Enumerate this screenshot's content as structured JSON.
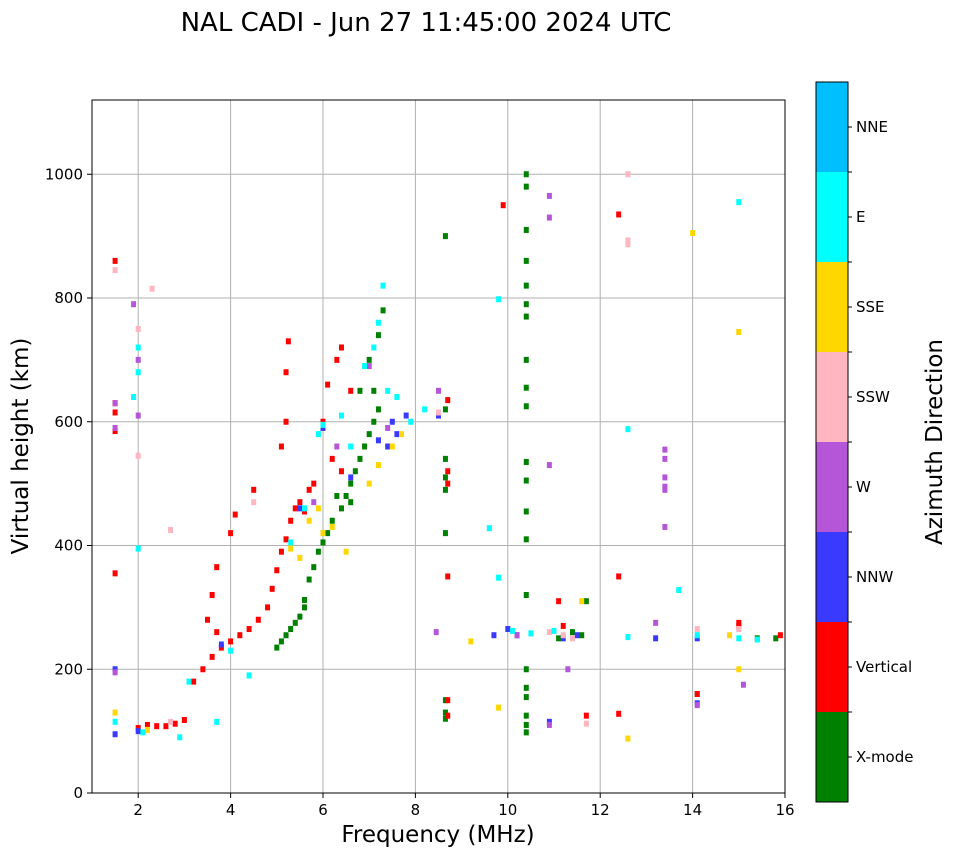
{
  "chart_data": {
    "type": "scatter",
    "title": "NAL CADI - Jun 27 11:45:00 2024 UTC",
    "xlabel": "Frequency (MHz)",
    "ylabel": "Virtual height (km)",
    "xlim": [
      1.0,
      16.0
    ],
    "ylim": [
      0,
      1120
    ],
    "xticks": [
      2,
      4,
      6,
      8,
      10,
      12,
      14,
      16
    ],
    "yticks": [
      0,
      200,
      400,
      600,
      800,
      1000
    ],
    "grid": true,
    "colorbar": {
      "label": "Azimuth Direction",
      "categories": [
        "X-mode",
        "Vertical",
        "NNW",
        "W",
        "SSW",
        "SSE",
        "E",
        "NNE"
      ],
      "colors": [
        "#008000",
        "#ff0000",
        "#3a3aff",
        "#b556d8",
        "#ffb6c1",
        "#ffd700",
        "#00ffff",
        "#00bfff"
      ]
    },
    "series": [
      {
        "name": "X-mode",
        "points": [
          [
            5.0,
            235
          ],
          [
            5.1,
            245
          ],
          [
            5.2,
            255
          ],
          [
            5.3,
            265
          ],
          [
            5.4,
            275
          ],
          [
            5.5,
            285
          ],
          [
            5.6,
            300
          ],
          [
            5.6,
            312
          ],
          [
            5.7,
            345
          ],
          [
            5.8,
            365
          ],
          [
            5.9,
            390
          ],
          [
            6.0,
            405
          ],
          [
            6.1,
            420
          ],
          [
            6.2,
            440
          ],
          [
            6.4,
            460
          ],
          [
            6.5,
            480
          ],
          [
            6.6,
            500
          ],
          [
            6.7,
            520
          ],
          [
            6.8,
            540
          ],
          [
            6.9,
            560
          ],
          [
            7.0,
            580
          ],
          [
            7.1,
            600
          ],
          [
            7.2,
            620
          ],
          [
            6.8,
            650
          ],
          [
            7.0,
            700
          ],
          [
            7.2,
            740
          ],
          [
            7.3,
            780
          ],
          [
            6.3,
            480
          ],
          [
            6.6,
            470
          ],
          [
            7.1,
            650
          ],
          [
            8.65,
            900
          ],
          [
            8.65,
            620
          ],
          [
            8.65,
            540
          ],
          [
            8.65,
            510
          ],
          [
            8.65,
            490
          ],
          [
            8.65,
            420
          ],
          [
            8.65,
            150
          ],
          [
            8.65,
            130
          ],
          [
            8.65,
            120
          ],
          [
            10.4,
            1000
          ],
          [
            10.4,
            980
          ],
          [
            10.4,
            910
          ],
          [
            10.4,
            860
          ],
          [
            10.4,
            820
          ],
          [
            10.4,
            790
          ],
          [
            10.4,
            770
          ],
          [
            10.4,
            700
          ],
          [
            10.4,
            655
          ],
          [
            10.4,
            625
          ],
          [
            10.4,
            535
          ],
          [
            10.4,
            505
          ],
          [
            10.4,
            455
          ],
          [
            10.4,
            410
          ],
          [
            10.4,
            320
          ],
          [
            10.4,
            200
          ],
          [
            10.4,
            170
          ],
          [
            10.4,
            155
          ],
          [
            10.4,
            125
          ],
          [
            10.4,
            110
          ],
          [
            10.4,
            98
          ],
          [
            11.1,
            250
          ],
          [
            11.4,
            260
          ],
          [
            11.6,
            255
          ],
          [
            11.7,
            310
          ],
          [
            14.1,
            160
          ],
          [
            15.4,
            250
          ],
          [
            15.8,
            250
          ]
        ]
      },
      {
        "name": "Vertical",
        "points": [
          [
            1.5,
            860
          ],
          [
            1.5,
            630
          ],
          [
            1.5,
            615
          ],
          [
            1.5,
            585
          ],
          [
            1.5,
            355
          ],
          [
            2.0,
            105
          ],
          [
            2.2,
            110
          ],
          [
            2.4,
            108
          ],
          [
            2.6,
            108
          ],
          [
            2.8,
            112
          ],
          [
            3.0,
            118
          ],
          [
            3.2,
            180
          ],
          [
            3.4,
            200
          ],
          [
            3.6,
            220
          ],
          [
            3.8,
            235
          ],
          [
            4.0,
            245
          ],
          [
            4.2,
            255
          ],
          [
            4.4,
            265
          ],
          [
            4.6,
            280
          ],
          [
            4.8,
            300
          ],
          [
            4.9,
            330
          ],
          [
            5.0,
            360
          ],
          [
            5.1,
            390
          ],
          [
            5.2,
            410
          ],
          [
            5.3,
            440
          ],
          [
            5.4,
            460
          ],
          [
            5.5,
            470
          ],
          [
            5.6,
            455
          ],
          [
            5.7,
            490
          ],
          [
            5.8,
            500
          ],
          [
            5.1,
            560
          ],
          [
            5.2,
            600
          ],
          [
            5.2,
            680
          ],
          [
            5.25,
            730
          ],
          [
            4.5,
            490
          ],
          [
            4.1,
            450
          ],
          [
            4.0,
            420
          ],
          [
            3.7,
            365
          ],
          [
            3.6,
            320
          ],
          [
            3.5,
            280
          ],
          [
            3.7,
            260
          ],
          [
            6.0,
            600
          ],
          [
            6.1,
            660
          ],
          [
            6.3,
            700
          ],
          [
            6.4,
            720
          ],
          [
            6.6,
            650
          ],
          [
            6.2,
            540
          ],
          [
            6.4,
            520
          ],
          [
            8.7,
            520
          ],
          [
            8.7,
            500
          ],
          [
            8.7,
            635
          ],
          [
            8.7,
            350
          ],
          [
            8.7,
            150
          ],
          [
            8.7,
            125
          ],
          [
            9.9,
            950
          ],
          [
            11.1,
            310
          ],
          [
            11.2,
            270
          ],
          [
            11.7,
            125
          ],
          [
            12.4,
            935
          ],
          [
            12.4,
            350
          ],
          [
            12.4,
            128
          ],
          [
            14.1,
            160
          ],
          [
            15.0,
            275
          ],
          [
            15.0,
            270
          ],
          [
            15.9,
            255
          ]
        ]
      },
      {
        "name": "NNW",
        "points": [
          [
            1.5,
            200
          ],
          [
            1.5,
            95
          ],
          [
            2.0,
            100
          ],
          [
            3.8,
            240
          ],
          [
            5.5,
            460
          ],
          [
            6.0,
            590
          ],
          [
            6.6,
            510
          ],
          [
            7.4,
            560
          ],
          [
            7.6,
            580
          ],
          [
            7.8,
            610
          ],
          [
            7.2,
            570
          ],
          [
            7.5,
            600
          ],
          [
            8.5,
            610
          ],
          [
            9.7,
            255
          ],
          [
            10.0,
            265
          ],
          [
            10.2,
            255
          ],
          [
            11.2,
            250
          ],
          [
            11.5,
            255
          ],
          [
            13.2,
            250
          ],
          [
            14.1,
            250
          ],
          [
            14.1,
            145
          ],
          [
            10.9,
            115
          ]
        ]
      },
      {
        "name": "W",
        "points": [
          [
            1.5,
            630
          ],
          [
            1.5,
            590
          ],
          [
            1.5,
            195
          ],
          [
            1.9,
            790
          ],
          [
            2.0,
            700
          ],
          [
            2.0,
            610
          ],
          [
            5.8,
            470
          ],
          [
            6.3,
            560
          ],
          [
            7.0,
            690
          ],
          [
            7.4,
            590
          ],
          [
            8.5,
            650
          ],
          [
            8.45,
            260
          ],
          [
            10.2,
            255
          ],
          [
            10.9,
            965
          ],
          [
            10.9,
            930
          ],
          [
            10.9,
            530
          ],
          [
            10.9,
            110
          ],
          [
            11.3,
            200
          ],
          [
            13.2,
            275
          ],
          [
            13.4,
            555
          ],
          [
            13.4,
            540
          ],
          [
            13.4,
            510
          ],
          [
            13.4,
            495
          ],
          [
            13.4,
            490
          ],
          [
            13.4,
            430
          ],
          [
            14.1,
            142
          ],
          [
            15.1,
            175
          ]
        ]
      },
      {
        "name": "SSW",
        "points": [
          [
            1.5,
            845
          ],
          [
            2.0,
            750
          ],
          [
            2.0,
            545
          ],
          [
            2.3,
            815
          ],
          [
            2.7,
            425
          ],
          [
            2.7,
            115
          ],
          [
            4.5,
            470
          ],
          [
            8.5,
            615
          ],
          [
            10.9,
            260
          ],
          [
            11.2,
            255
          ],
          [
            11.4,
            250
          ],
          [
            11.7,
            112
          ],
          [
            12.6,
            1000
          ],
          [
            12.6,
            893
          ],
          [
            12.6,
            887
          ],
          [
            14.1,
            265
          ],
          [
            15.0,
            265
          ]
        ]
      },
      {
        "name": "SSE",
        "points": [
          [
            1.5,
            130
          ],
          [
            2.2,
            102
          ],
          [
            5.3,
            395
          ],
          [
            5.5,
            380
          ],
          [
            5.7,
            440
          ],
          [
            5.9,
            460
          ],
          [
            6.0,
            420
          ],
          [
            6.2,
            430
          ],
          [
            6.5,
            390
          ],
          [
            7.0,
            500
          ],
          [
            7.2,
            530
          ],
          [
            7.5,
            560
          ],
          [
            7.7,
            580
          ],
          [
            9.2,
            245
          ],
          [
            9.8,
            138
          ],
          [
            11.6,
            310
          ],
          [
            12.6,
            88
          ],
          [
            14.0,
            905
          ],
          [
            15.0,
            745
          ],
          [
            15.0,
            200
          ],
          [
            14.8,
            255
          ]
        ]
      },
      {
        "name": "E",
        "points": [
          [
            1.5,
            115
          ],
          [
            1.9,
            640
          ],
          [
            2.0,
            720
          ],
          [
            2.0,
            680
          ],
          [
            2.0,
            395
          ],
          [
            2.1,
            98
          ],
          [
            2.9,
            90
          ],
          [
            3.1,
            180
          ],
          [
            3.7,
            115
          ],
          [
            4.0,
            230
          ],
          [
            4.4,
            190
          ],
          [
            5.3,
            405
          ],
          [
            5.6,
            460
          ],
          [
            5.9,
            580
          ],
          [
            6.0,
            595
          ],
          [
            6.4,
            610
          ],
          [
            6.6,
            560
          ],
          [
            6.9,
            690
          ],
          [
            7.1,
            720
          ],
          [
            7.3,
            820
          ],
          [
            7.2,
            760
          ],
          [
            7.4,
            650
          ],
          [
            7.6,
            640
          ],
          [
            7.9,
            600
          ],
          [
            8.2,
            620
          ],
          [
            9.6,
            428
          ],
          [
            9.8,
            798
          ],
          [
            9.8,
            348
          ],
          [
            10.1,
            262
          ],
          [
            10.5,
            258
          ],
          [
            11.0,
            262
          ],
          [
            12.6,
            588
          ],
          [
            12.6,
            252
          ],
          [
            13.7,
            328
          ],
          [
            14.1,
            255
          ],
          [
            15.0,
            955
          ],
          [
            15.0,
            250
          ],
          [
            15.4,
            248
          ]
        ]
      },
      {
        "name": "NNE",
        "points": []
      }
    ]
  }
}
